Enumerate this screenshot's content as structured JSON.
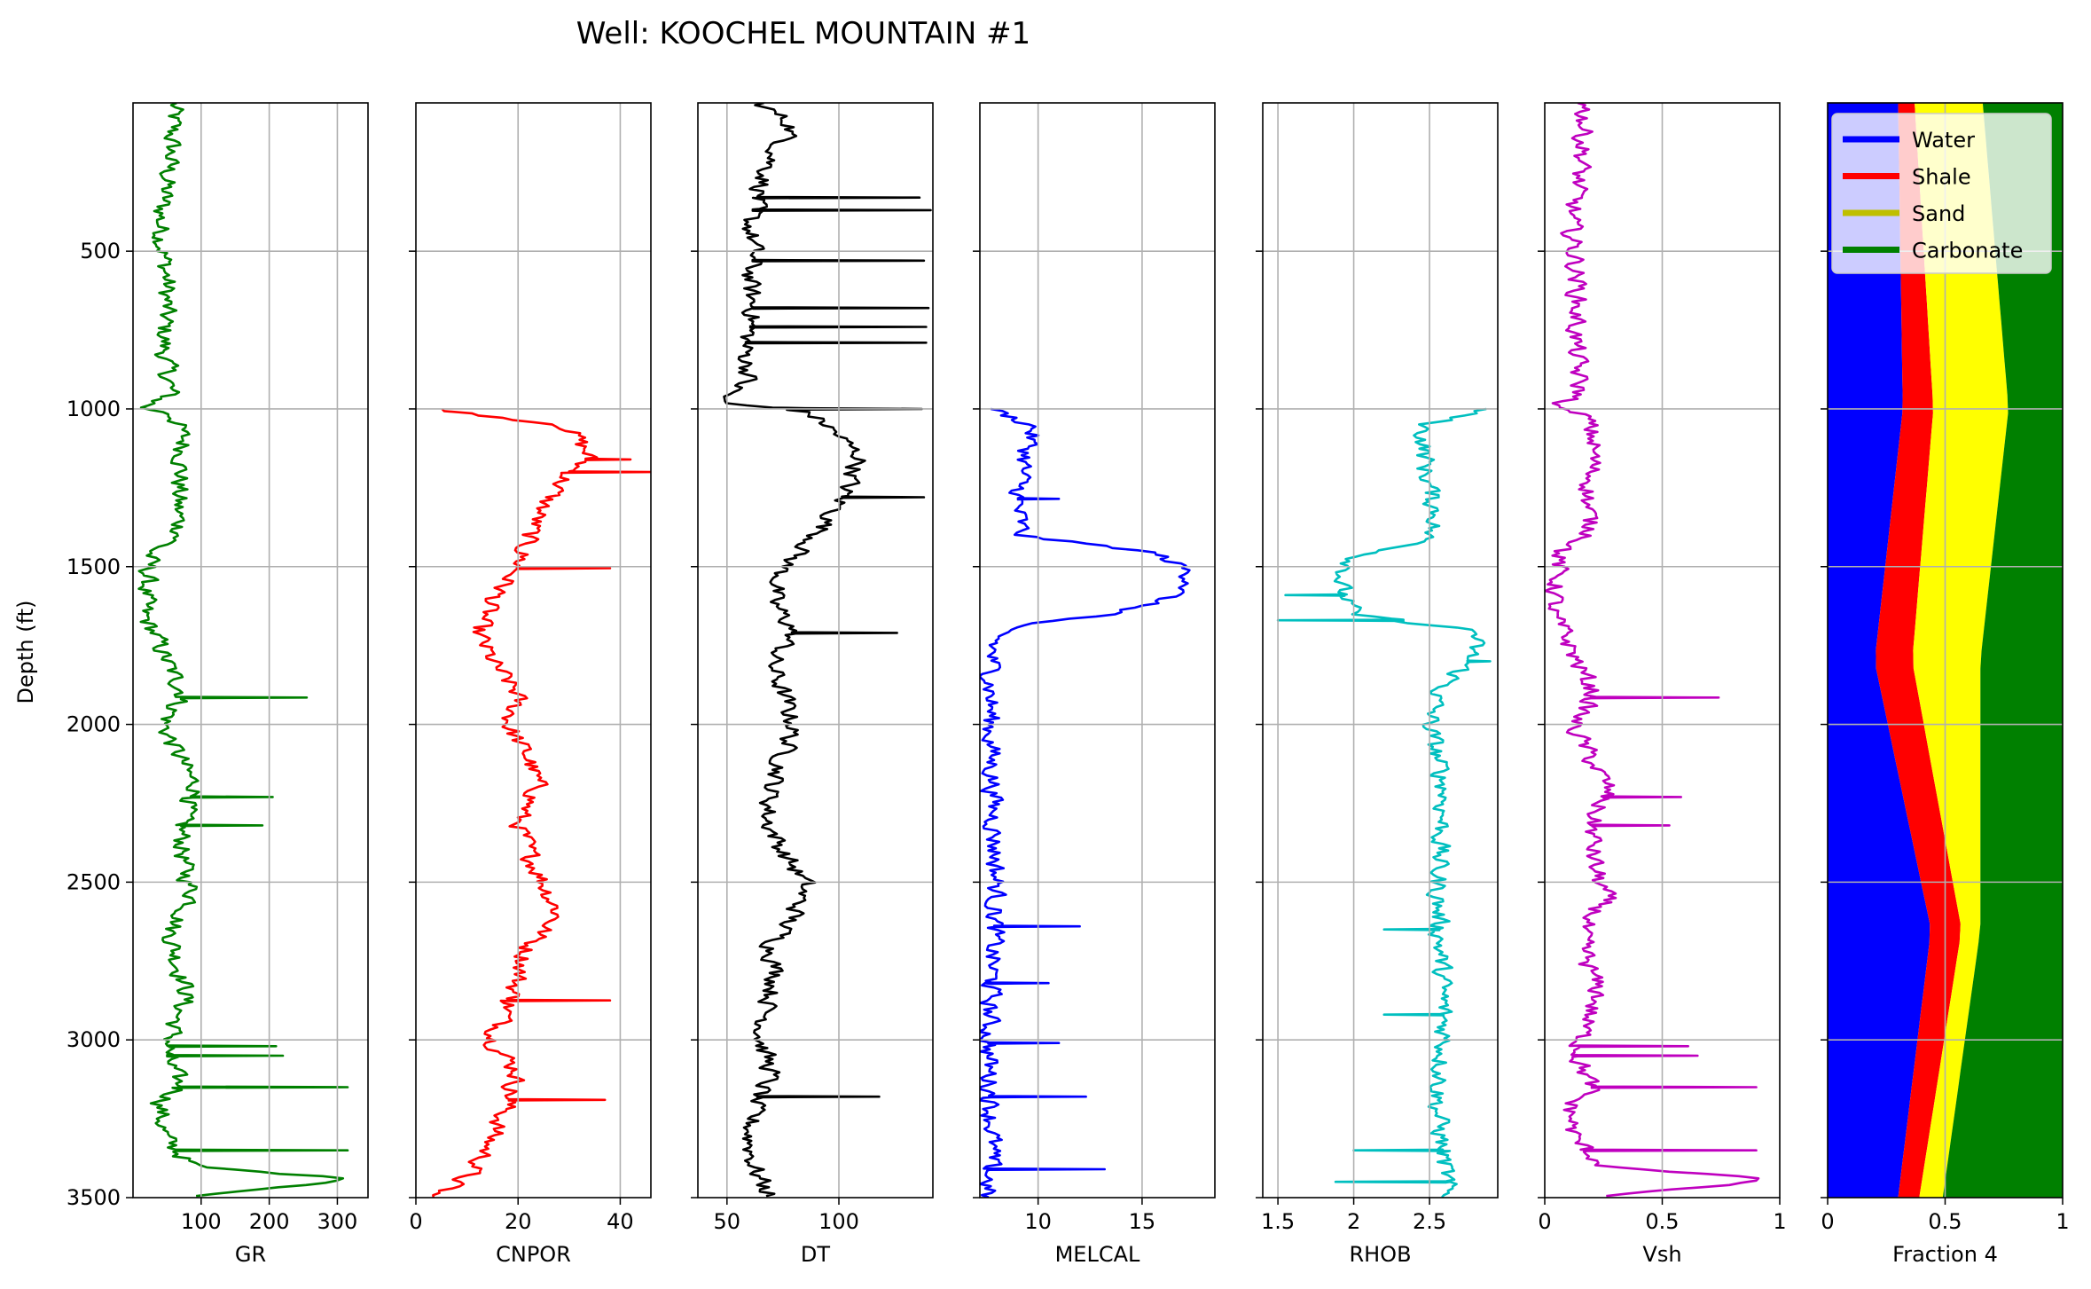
{
  "figure": {
    "title": "Well: KOOCHEL MOUNTAIN #1"
  },
  "chart_data": {
    "type": "line",
    "title": "Well: KOOCHEL MOUNTAIN #1",
    "ylabel": "Depth (ft)",
    "ylim": [
      3500,
      30
    ],
    "yticks": [
      500,
      1000,
      1500,
      2000,
      2500,
      3000,
      3500
    ],
    "grid": true,
    "tracks": [
      {
        "name": "GR",
        "xlabel": "GR",
        "color": "#008000",
        "xlim": [
          0,
          345
        ],
        "xticks": [
          100,
          200,
          300
        ],
        "depth": [
          30,
          200,
          400,
          600,
          800,
          950,
          1000,
          1010,
          1100,
          1200,
          1300,
          1400,
          1450,
          1550,
          1650,
          1700,
          1800,
          1900,
          2000,
          2150,
          2200,
          2300,
          2450,
          2550,
          2650,
          2750,
          2850,
          2950,
          3050,
          3150,
          3200,
          3300,
          3350,
          3400,
          3440,
          3500
        ],
        "values": [
          60,
          55,
          40,
          50,
          45,
          55,
          10,
          60,
          75,
          70,
          65,
          70,
          25,
          20,
          15,
          30,
          50,
          75,
          45,
          80,
          95,
          70,
          75,
          90,
          55,
          65,
          80,
          60,
          50,
          70,
          40,
          45,
          65,
          90,
          345,
          40
        ],
        "spikes": [
          {
            "depth": 1915,
            "value": 255
          },
          {
            "depth": 2230,
            "value": 205
          },
          {
            "depth": 2320,
            "value": 190
          },
          {
            "depth": 3020,
            "value": 210
          },
          {
            "depth": 3050,
            "value": 220
          },
          {
            "depth": 3150,
            "value": 315
          },
          {
            "depth": 3350,
            "value": 315
          }
        ]
      },
      {
        "name": "CNPOR",
        "xlabel": "CNPOR",
        "color": "#ff0000",
        "xlim": [
          0,
          46
        ],
        "xticks": [
          0,
          20,
          40
        ],
        "depth": [
          1000,
          1050,
          1150,
          1200,
          1300,
          1400,
          1500,
          1600,
          1700,
          1800,
          1900,
          2000,
          2100,
          2200,
          2300,
          2400,
          2500,
          2600,
          2700,
          2800,
          2900,
          3000,
          3100,
          3200,
          3300,
          3400,
          3450,
          3500
        ],
        "values": [
          5,
          30,
          34,
          30,
          25,
          22,
          20,
          15,
          12,
          15,
          20,
          18,
          22,
          24,
          20,
          22,
          25,
          28,
          22,
          20,
          18,
          15,
          20,
          18,
          15,
          12,
          8,
          2
        ],
        "spikes": [
          {
            "depth": 1200,
            "value": 46
          },
          {
            "depth": 1160,
            "value": 42
          },
          {
            "depth": 1505,
            "value": 38
          },
          {
            "depth": 2875,
            "value": 38
          },
          {
            "depth": 3190,
            "value": 37
          }
        ]
      },
      {
        "name": "DT",
        "xlabel": "DT",
        "color": "#000000",
        "xlim": [
          37,
          142
        ],
        "xticks": [
          50,
          100
        ],
        "depth": [
          30,
          100,
          200,
          300,
          400,
          500,
          600,
          700,
          800,
          900,
          980,
          1000,
          1050,
          1150,
          1300,
          1400,
          1500,
          1600,
          1700,
          1800,
          1900,
          2000,
          2100,
          2200,
          2300,
          2400,
          2500,
          2600,
          2700,
          2800,
          2900,
          3000,
          3100,
          3200,
          3300,
          3400,
          3500
        ],
        "values": [
          65,
          80,
          70,
          65,
          60,
          62,
          60,
          62,
          58,
          60,
          45,
          85,
          95,
          110,
          100,
          90,
          75,
          70,
          80,
          70,
          75,
          80,
          75,
          70,
          68,
          75,
          85,
          80,
          70,
          72,
          68,
          65,
          70,
          62,
          60,
          62,
          70
        ],
        "spikes": [
          {
            "depth": 330,
            "value": 136
          },
          {
            "depth": 370,
            "value": 141
          },
          {
            "depth": 530,
            "value": 138
          },
          {
            "depth": 680,
            "value": 140
          },
          {
            "depth": 740,
            "value": 139
          },
          {
            "depth": 790,
            "value": 139
          },
          {
            "depth": 1000,
            "value": 137
          },
          {
            "depth": 1280,
            "value": 138
          },
          {
            "depth": 1710,
            "value": 126
          },
          {
            "depth": 3180,
            "value": 118
          }
        ]
      },
      {
        "name": "MELCAL",
        "xlabel": "MELCAL",
        "color": "#0000ff",
        "xlim": [
          7.2,
          18.5
        ],
        "xticks": [
          10,
          15
        ],
        "depth": [
          1000,
          1050,
          1200,
          1300,
          1400,
          1450,
          1500,
          1550,
          1600,
          1650,
          1680,
          1750,
          2000,
          2500,
          3000,
          3300,
          3450,
          3500
        ],
        "values": [
          7.8,
          9.8,
          9.2,
          9.0,
          9.2,
          15.5,
          17.0,
          17.5,
          16.0,
          13.5,
          8.5,
          7.8,
          7.7,
          8.0,
          7.6,
          7.8,
          7.6,
          7.5
        ],
        "spikes": [
          {
            "depth": 1285,
            "value": 11.0
          },
          {
            "depth": 2640,
            "value": 12.0
          },
          {
            "depth": 2820,
            "value": 10.5
          },
          {
            "depth": 3010,
            "value": 11.0
          },
          {
            "depth": 3180,
            "value": 12.3
          },
          {
            "depth": 3410,
            "value": 13.2
          }
        ]
      },
      {
        "name": "RHOB",
        "xlabel": "RHOB",
        "color": "#00bfbf",
        "xlim": [
          1.4,
          2.95
        ],
        "xticks": [
          1.5,
          2.0,
          2.5
        ],
        "depth": [
          1000,
          1050,
          1200,
          1350,
          1420,
          1470,
          1550,
          1650,
          1700,
          1800,
          1900,
          2000,
          2200,
          2500,
          2800,
          3000,
          3200,
          3400,
          3500
        ],
        "values": [
          2.85,
          2.45,
          2.48,
          2.55,
          2.45,
          2.0,
          1.9,
          2.0,
          2.82,
          2.75,
          2.55,
          2.5,
          2.6,
          2.55,
          2.58,
          2.6,
          2.55,
          2.6,
          2.62
        ],
        "spikes": [
          {
            "depth": 1590,
            "value": 1.55
          },
          {
            "depth": 1670,
            "value": 1.5
          },
          {
            "depth": 1800,
            "value": 2.9
          },
          {
            "depth": 2650,
            "value": 2.2
          },
          {
            "depth": 2920,
            "value": 2.2
          },
          {
            "depth": 3350,
            "value": 2.0
          },
          {
            "depth": 3450,
            "value": 1.88
          }
        ]
      },
      {
        "name": "Vsh",
        "xlabel": "Vsh",
        "color": "#bf00bf",
        "xlim": [
          0.0,
          1.0
        ],
        "xticks": [
          0.0,
          0.5,
          1.0
        ],
        "depth": [
          30,
          200,
          400,
          600,
          800,
          950,
          1000,
          1010,
          1100,
          1200,
          1300,
          1400,
          1450,
          1550,
          1650,
          1700,
          1800,
          1900,
          2000,
          2150,
          2200,
          2300,
          2450,
          2550,
          2650,
          2750,
          2850,
          2950,
          3050,
          3150,
          3200,
          3300,
          3350,
          3400,
          3440,
          3500
        ],
        "values": [
          0.17,
          0.16,
          0.11,
          0.14,
          0.13,
          0.15,
          0.02,
          0.17,
          0.21,
          0.2,
          0.18,
          0.2,
          0.06,
          0.05,
          0.03,
          0.08,
          0.14,
          0.21,
          0.12,
          0.23,
          0.27,
          0.2,
          0.21,
          0.26,
          0.15,
          0.18,
          0.23,
          0.17,
          0.14,
          0.2,
          0.11,
          0.12,
          0.18,
          0.26,
          1.0,
          0.11
        ],
        "spikes": [
          {
            "depth": 1915,
            "value": 0.74
          },
          {
            "depth": 2230,
            "value": 0.58
          },
          {
            "depth": 2320,
            "value": 0.53
          },
          {
            "depth": 3020,
            "value": 0.61
          },
          {
            "depth": 3050,
            "value": 0.65
          },
          {
            "depth": 3150,
            "value": 0.9
          },
          {
            "depth": 3350,
            "value": 0.9
          }
        ]
      },
      {
        "name": "Fraction 4",
        "xlabel": "Fraction 4",
        "type": "area",
        "xlim": [
          0.0,
          1.0
        ],
        "xticks": [
          0.0,
          0.5,
          1.0
        ],
        "depth": [
          30,
          1000,
          1800,
          2650,
          3500
        ],
        "series": [
          {
            "name": "Water",
            "color": "#0000ff",
            "cumulative": [
              0.3,
              0.32,
              0.2,
              0.44,
              0.3
            ]
          },
          {
            "name": "Shale",
            "color": "#ff0000",
            "cumulative": [
              0.37,
              0.45,
              0.36,
              0.57,
              0.39
            ]
          },
          {
            "name": "Sand",
            "color": "#ffff00",
            "cumulative": [
              0.66,
              0.77,
              0.65,
              0.65,
              0.49
            ]
          },
          {
            "name": "Carbonate",
            "color": "#008000",
            "cumulative": [
              1.0,
              1.0,
              1.0,
              1.0,
              1.0
            ]
          }
        ],
        "legend": {
          "placement": "upper-left",
          "entries": [
            {
              "label": "Water",
              "color": "#0000ff"
            },
            {
              "label": "Shale",
              "color": "#ff0000"
            },
            {
              "label": "Sand",
              "color": "#bfbf00"
            },
            {
              "label": "Carbonate",
              "color": "#008000"
            }
          ]
        }
      }
    ]
  }
}
